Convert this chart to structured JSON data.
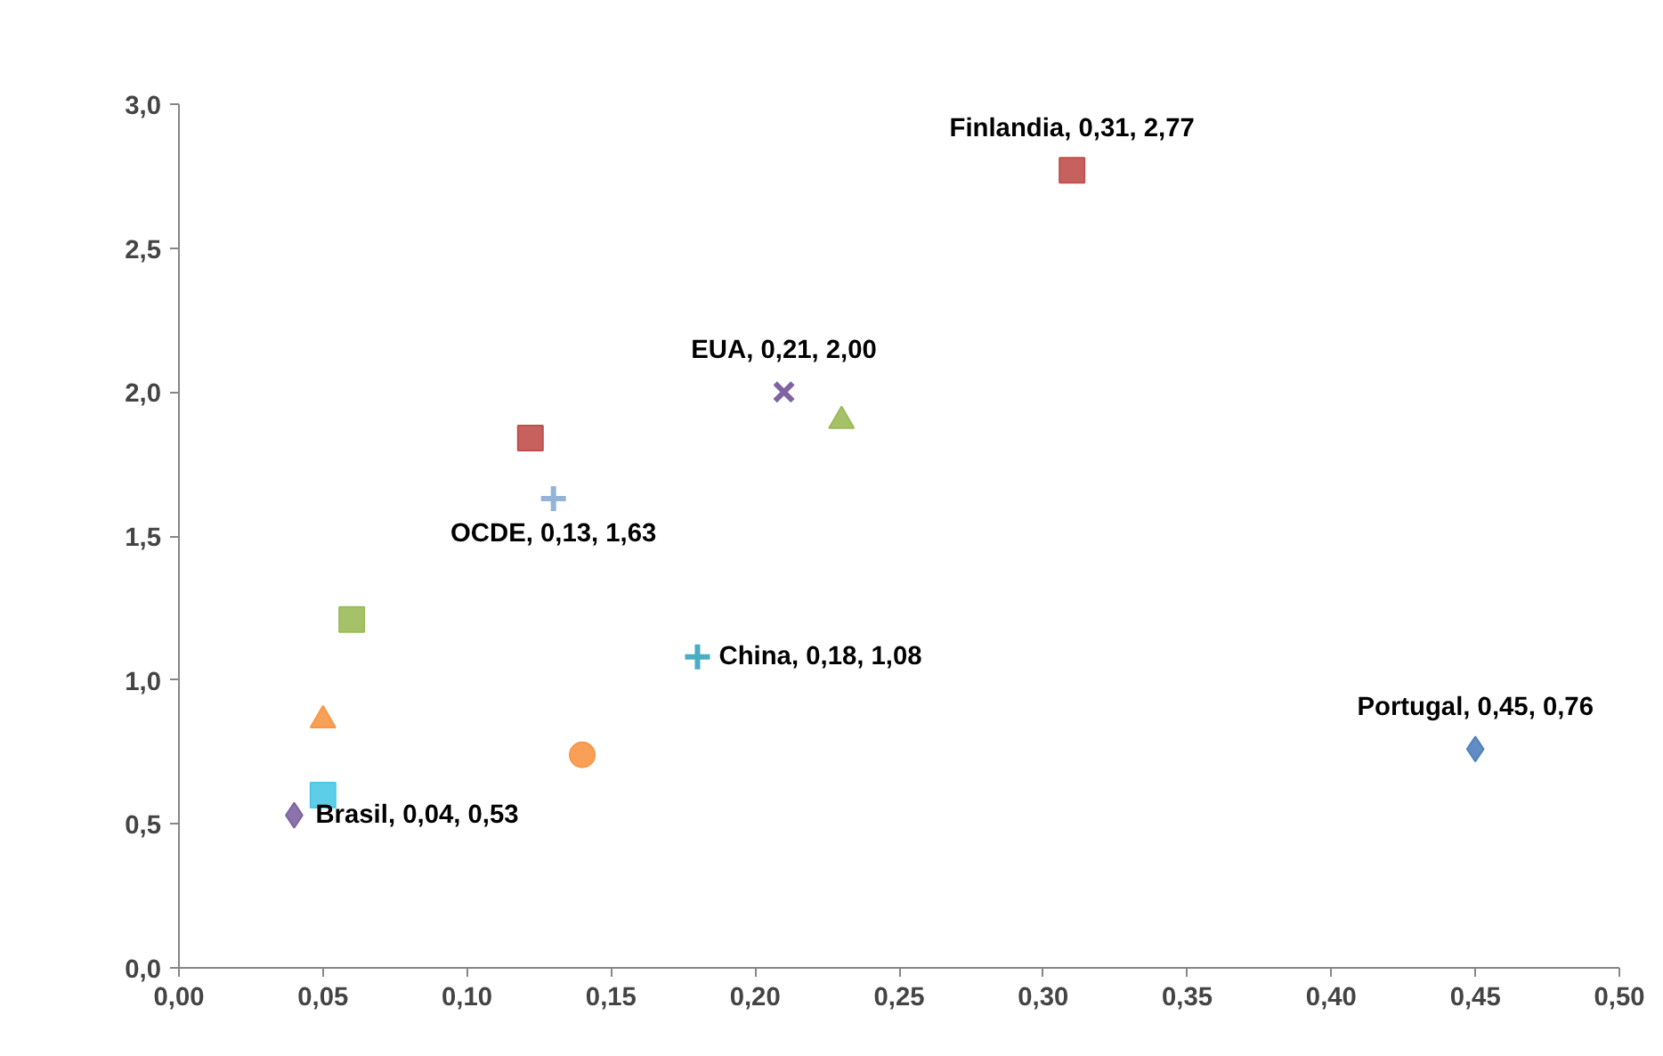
{
  "chart_data": {
    "type": "scatter",
    "series": [
      {
        "color": "#4f81bd",
        "marker": "diamond",
        "x": [
          0.45
        ],
        "values": [
          0.76
        ]
      },
      {
        "color": "#c0504d",
        "marker": "square",
        "x": [
          0.31
        ],
        "values": [
          2.77
        ]
      },
      {
        "color": "#8064a2",
        "marker": "x",
        "x": [
          0.21
        ],
        "values": [
          2.0
        ]
      },
      {
        "color": "#9bbb59",
        "marker": "triangle",
        "x": [
          0.23
        ],
        "values": [
          1.9
        ]
      },
      {
        "color": "#c0504d",
        "marker": "square",
        "x": [
          0.122
        ],
        "values": [
          1.84
        ]
      },
      {
        "color": "#95b3d7",
        "marker": "cross",
        "x": [
          0.13
        ],
        "values": [
          1.63
        ]
      },
      {
        "color": "#9bbb59",
        "marker": "square",
        "x": [
          0.06
        ],
        "values": [
          1.21
        ]
      },
      {
        "color": "#4bacc6",
        "marker": "cross",
        "x": [
          0.18
        ],
        "values": [
          1.08
        ]
      },
      {
        "color": "#f79646",
        "marker": "triangle",
        "x": [
          0.05
        ],
        "values": [
          0.86
        ]
      },
      {
        "color": "#f79646",
        "marker": "circle",
        "x": [
          0.14
        ],
        "values": [
          0.74
        ]
      },
      {
        "color": "#4bc8e6",
        "marker": "square",
        "x": [
          0.05
        ],
        "values": [
          0.6
        ]
      },
      {
        "color": "#8064a2",
        "marker": "diamond",
        "x": [
          0.04
        ],
        "values": [
          0.53
        ]
      }
    ],
    "annotations": [
      {
        "text": "Portugal, 0,45, 0,76",
        "x": 0.45,
        "y": 0.76
      },
      {
        "text": "Finlandia, 0,31, 2,77",
        "x": 0.31,
        "y": 2.77
      },
      {
        "text": "EUA, 0,21, 2,00",
        "x": 0.21,
        "y": 2.0
      },
      {
        "text": "OCDE, 0,13, 1,63",
        "x": 0.13,
        "y": 1.63
      },
      {
        "text": "China, 0,18, 1,08",
        "x": 0.18,
        "y": 1.08
      },
      {
        "text": "Brasil, 0,04, 0,53",
        "x": 0.04,
        "y": 0.53
      }
    ],
    "xlim": [
      0,
      0.5
    ],
    "ylim": [
      0,
      3.0
    ],
    "xticks": [
      {
        "value": 0,
        "label": "0,00"
      },
      {
        "value": 0.05,
        "label": "0,05"
      },
      {
        "value": 0.1,
        "label": "0,10"
      },
      {
        "value": 0.15,
        "label": "0,15"
      },
      {
        "value": 0.2,
        "label": "0,20"
      },
      {
        "value": 0.25,
        "label": "0,25"
      },
      {
        "value": 0.3,
        "label": "0,30"
      },
      {
        "value": 0.35,
        "label": "0,35"
      },
      {
        "value": 0.4,
        "label": "0,40"
      },
      {
        "value": 0.45,
        "label": "0,45"
      },
      {
        "value": 0.5,
        "label": "0,50"
      }
    ],
    "yticks": [
      {
        "value": 0,
        "label": "0,0"
      },
      {
        "value": 0.5,
        "label": "0,5"
      },
      {
        "value": 1.0,
        "label": "1,0"
      },
      {
        "value": 1.5,
        "label": "1,5"
      },
      {
        "value": 2.0,
        "label": "2,0"
      },
      {
        "value": 2.5,
        "label": "2,5"
      },
      {
        "value": 3.0,
        "label": "3,0"
      }
    ],
    "grid": false
  }
}
